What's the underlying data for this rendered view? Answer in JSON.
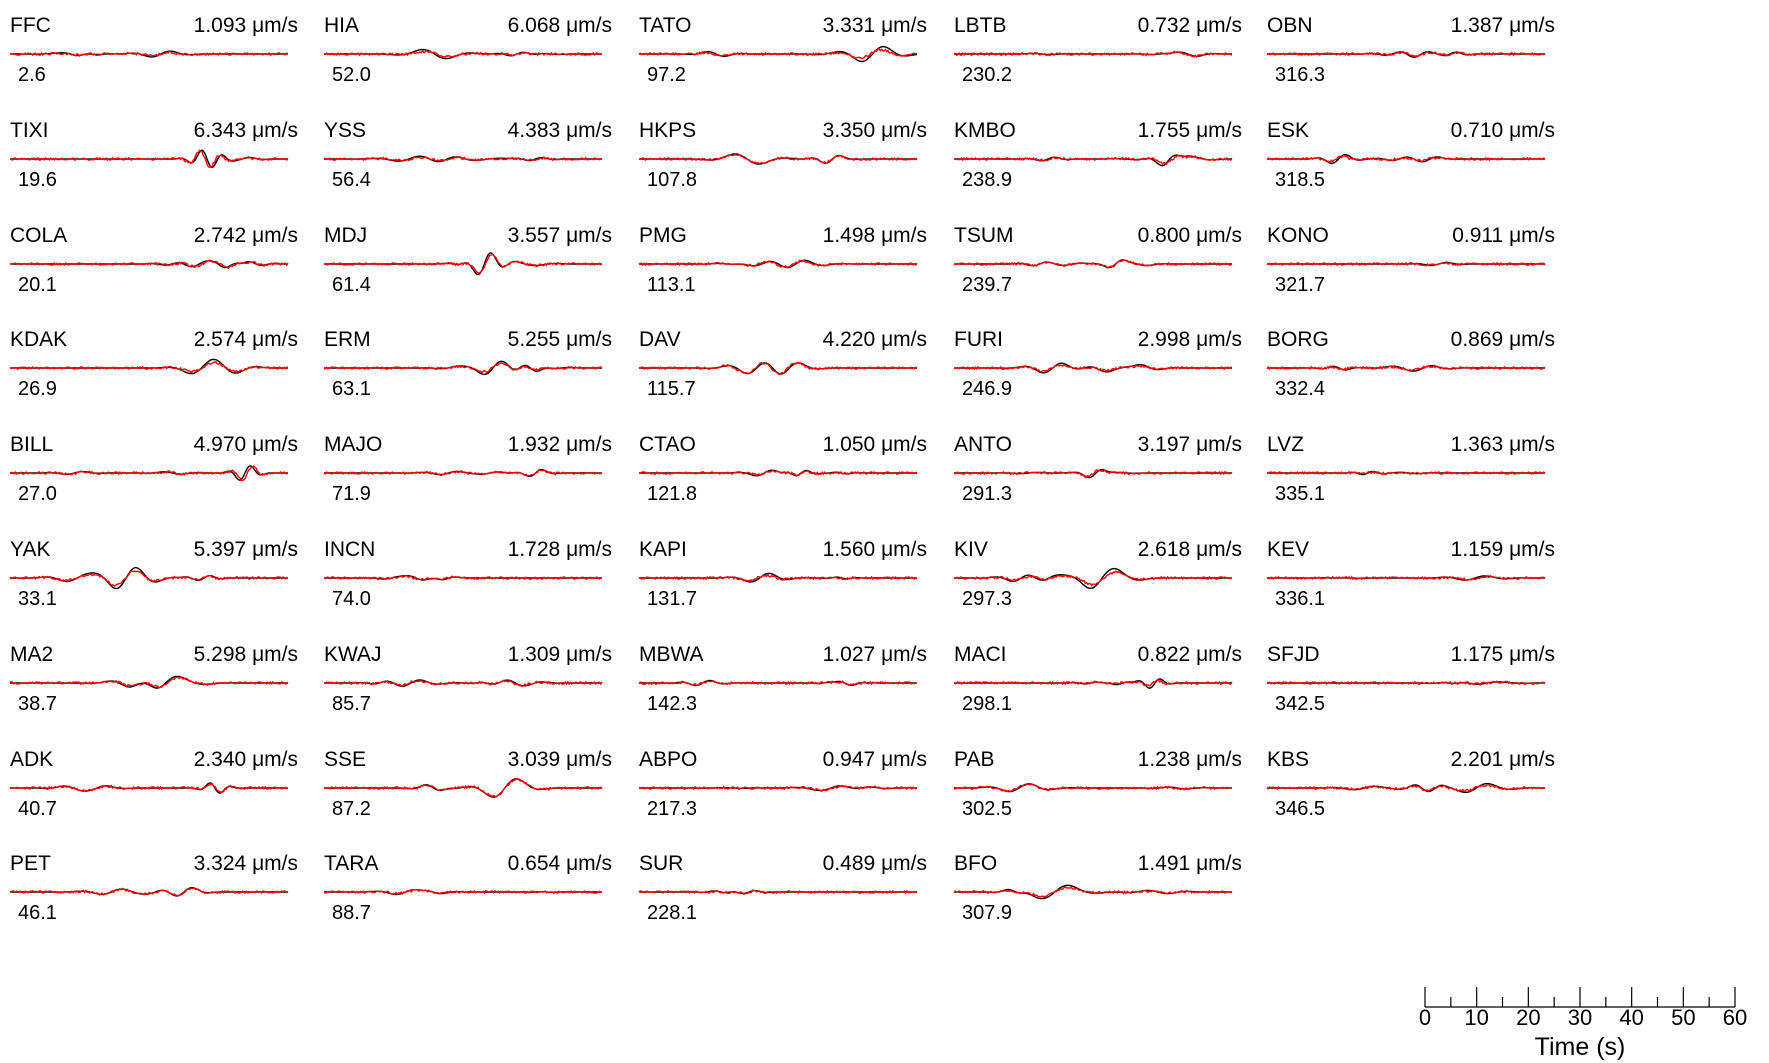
{
  "colors": {
    "observed": "#000000",
    "synthetic": "#ff0000"
  },
  "chart_data": {
    "type": "line",
    "columns": 5,
    "series_names": [
      "observed",
      "synthetic"
    ],
    "x_axis": {
      "label": "Time (s)",
      "range": [
        0,
        60
      ],
      "ticks": [
        0,
        10,
        20,
        30,
        40,
        50,
        60
      ],
      "minor_step": 5
    },
    "stations": [
      {
        "name": "FFC",
        "amp": "1.093",
        "az": "2.6"
      },
      {
        "name": "TIXI",
        "amp": "6.343",
        "az": "19.6"
      },
      {
        "name": "COLA",
        "amp": "2.742",
        "az": "20.1"
      },
      {
        "name": "KDAK",
        "amp": "2.574",
        "az": "26.9"
      },
      {
        "name": "BILL",
        "amp": "4.970",
        "az": "27.0"
      },
      {
        "name": "YAK",
        "amp": "5.397",
        "az": "33.1"
      },
      {
        "name": "MA2",
        "amp": "5.298",
        "az": "38.7"
      },
      {
        "name": "ADK",
        "amp": "2.340",
        "az": "40.7"
      },
      {
        "name": "PET",
        "amp": "3.324",
        "az": "46.1"
      },
      {
        "name": "HIA",
        "amp": "6.068",
        "az": "52.0"
      },
      {
        "name": "YSS",
        "amp": "4.383",
        "az": "56.4"
      },
      {
        "name": "MDJ",
        "amp": "3.557",
        "az": "61.4"
      },
      {
        "name": "ERM",
        "amp": "5.255",
        "az": "63.1"
      },
      {
        "name": "MAJO",
        "amp": "1.932",
        "az": "71.9"
      },
      {
        "name": "INCN",
        "amp": "1.728",
        "az": "74.0"
      },
      {
        "name": "KWAJ",
        "amp": "1.309",
        "az": "85.7"
      },
      {
        "name": "SSE",
        "amp": "3.039",
        "az": "87.2"
      },
      {
        "name": "TARA",
        "amp": "0.654",
        "az": "88.7"
      },
      {
        "name": "TATO",
        "amp": "3.331",
        "az": "97.2"
      },
      {
        "name": "HKPS",
        "amp": "3.350",
        "az": "107.8"
      },
      {
        "name": "PMG",
        "amp": "1.498",
        "az": "113.1"
      },
      {
        "name": "DAV",
        "amp": "4.220",
        "az": "115.7"
      },
      {
        "name": "CTAO",
        "amp": "1.050",
        "az": "121.8"
      },
      {
        "name": "KAPI",
        "amp": "1.560",
        "az": "131.7"
      },
      {
        "name": "MBWA",
        "amp": "1.027",
        "az": "142.3"
      },
      {
        "name": "ABPO",
        "amp": "0.947",
        "az": "217.3"
      },
      {
        "name": "SUR",
        "amp": "0.489",
        "az": "228.1"
      },
      {
        "name": "LBTB",
        "amp": "0.732",
        "az": "230.2"
      },
      {
        "name": "KMBO",
        "amp": "1.755",
        "az": "238.9"
      },
      {
        "name": "TSUM",
        "amp": "0.800",
        "az": "239.7"
      },
      {
        "name": "FURI",
        "amp": "2.998",
        "az": "246.9"
      },
      {
        "name": "ANTO",
        "amp": "3.197",
        "az": "291.3"
      },
      {
        "name": "KIV",
        "amp": "2.618",
        "az": "297.3"
      },
      {
        "name": "MACI",
        "amp": "0.822",
        "az": "298.1"
      },
      {
        "name": "PAB",
        "amp": "1.238",
        "az": "302.5"
      },
      {
        "name": "BFO",
        "amp": "1.491",
        "az": "307.9"
      },
      {
        "name": "OBN",
        "amp": "1.387",
        "az": "316.3"
      },
      {
        "name": "ESK",
        "amp": "0.710",
        "az": "318.5"
      },
      {
        "name": "KONO",
        "amp": "0.911",
        "az": "321.7"
      },
      {
        "name": "BORG",
        "amp": "0.869",
        "az": "332.4"
      },
      {
        "name": "LVZ",
        "amp": "1.363",
        "az": "335.1"
      },
      {
        "name": "KEV",
        "amp": "1.159",
        "az": "336.1"
      },
      {
        "name": "SFJD",
        "amp": "1.175",
        "az": "342.5"
      },
      {
        "name": "KBS",
        "amp": "2.201",
        "az": "346.5"
      }
    ],
    "amp_unit": "μm/s"
  }
}
